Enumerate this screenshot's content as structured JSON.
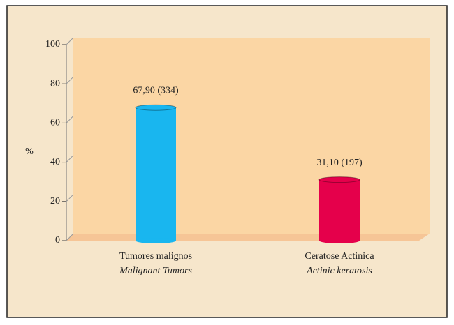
{
  "chart_data": {
    "type": "bar",
    "ylabel": "%",
    "categories": [
      "Tumores malignos",
      "Ceratose Actinica"
    ],
    "subcategories": [
      "Malignant Tumors",
      "Actinic keratosis"
    ],
    "values": [
      67.9,
      31.1
    ],
    "value_labels": [
      "67,90 (334)",
      "31,10 (197)"
    ],
    "colors": [
      "#19b6ef",
      "#e5004b"
    ],
    "ylim": [
      0,
      100
    ],
    "yticks": [
      0,
      20,
      40,
      60,
      80,
      100
    ]
  }
}
